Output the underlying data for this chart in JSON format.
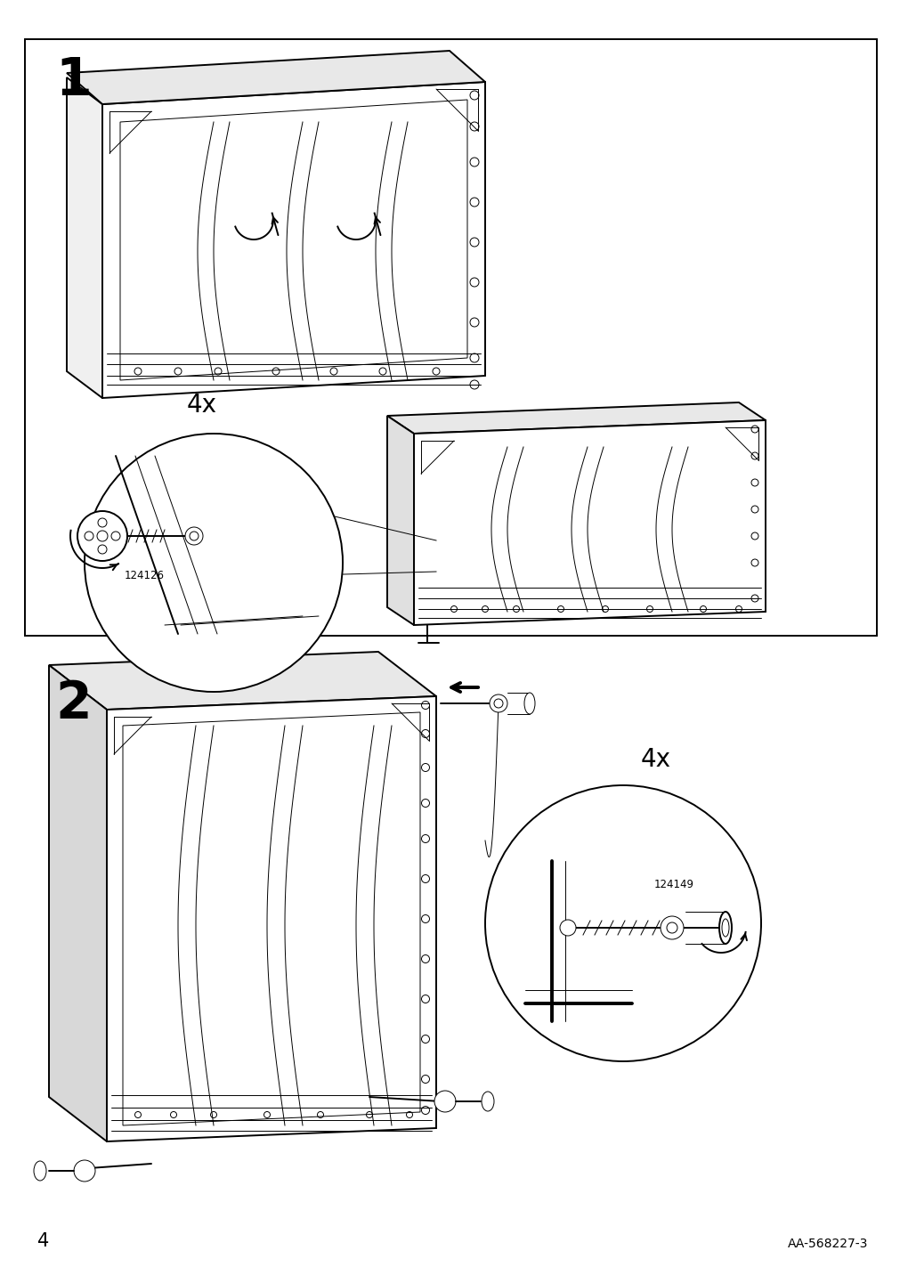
{
  "background_color": "#ffffff",
  "page_number": "4",
  "reference_code": "AA-568227-3",
  "step1_label": "1",
  "step2_label": "2",
  "step1_multiplier": "4x",
  "step2_multiplier": "4x",
  "part_code_1": "124126",
  "part_code_2": "124149",
  "line_color": "#000000",
  "lw_thin": 0.7,
  "lw_med": 1.4,
  "lw_thick": 2.8
}
